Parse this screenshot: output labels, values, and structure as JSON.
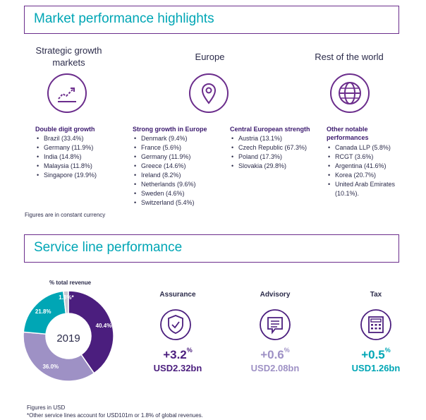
{
  "markets": {
    "title": "Market performance highlights",
    "columns": [
      {
        "title": "Strategic growth markets",
        "icon": "growth-chart-icon",
        "lists": [
          {
            "heading": "Double digit growth",
            "items": [
              "Brazil (33.4%)",
              "Germany (11.9%)",
              "India (14.8%)",
              "Malaysia (11.8%)",
              "Singapore (19.9%)"
            ]
          }
        ]
      },
      {
        "title": "Europe",
        "icon": "location-pin-icon",
        "lists": [
          {
            "heading": "Strong growth in Europe",
            "items": [
              "Denmark (9.4%)",
              "France (5.6%)",
              "Germany (11.9%)",
              "Greece (14.6%)",
              "Ireland (8.2%)",
              "Netherlands (9.6%)",
              "Sweden (4.6%)",
              "Switzerland (5.4%)"
            ]
          },
          {
            "heading": "Central European strength",
            "items": [
              "Austria (13.1%)",
              "Czech Republic (67.3%)",
              "Poland (17.3%)",
              "Slovakia (29.8%)"
            ]
          }
        ]
      },
      {
        "title": "Rest of the world",
        "icon": "globe-icon",
        "lists": [
          {
            "heading": "Other notable performances",
            "items": [
              "Canada LLP (5.8%)",
              "RCGT (3.6%)",
              "Argentina (41.6%)",
              "Korea (20.7%)",
              "United Arab Emirates (10.1%)."
            ]
          }
        ]
      }
    ],
    "note": "Figures are in constant currency"
  },
  "service": {
    "title": "Service line performance",
    "donut": {
      "caption": "% total revenue",
      "center": "2019",
      "slices": [
        {
          "label": "40.4%",
          "value": 40.4,
          "color": "#4b1e7e"
        },
        {
          "label": "36.0%",
          "value": 36.0,
          "color": "#9e91c5"
        },
        {
          "label": "21.8%",
          "value": 21.8,
          "color": "#00a6b5"
        },
        {
          "label": "1.8%*",
          "value": 1.8,
          "color": "#c9c9d4"
        }
      ]
    },
    "lines": [
      {
        "label": "Assurance",
        "growth": "+3.2",
        "unit": "%",
        "revenue": "USD2.32bn",
        "color": "#4b1e7e",
        "icon": "shield-check-icon"
      },
      {
        "label": "Advisory",
        "growth": "+0.6",
        "unit": "%",
        "revenue": "USD2.08bn",
        "color": "#9e91c5",
        "icon": "chat-bubble-icon"
      },
      {
        "label": "Tax",
        "growth": "+0.5",
        "unit": "%",
        "revenue": "USD1.26bn",
        "color": "#00a6b5",
        "icon": "calculator-icon"
      }
    ],
    "footnote1": "Figures in USD",
    "footnote2": "*Other service lines account for USD101m or 1.8% of global revenues."
  }
}
